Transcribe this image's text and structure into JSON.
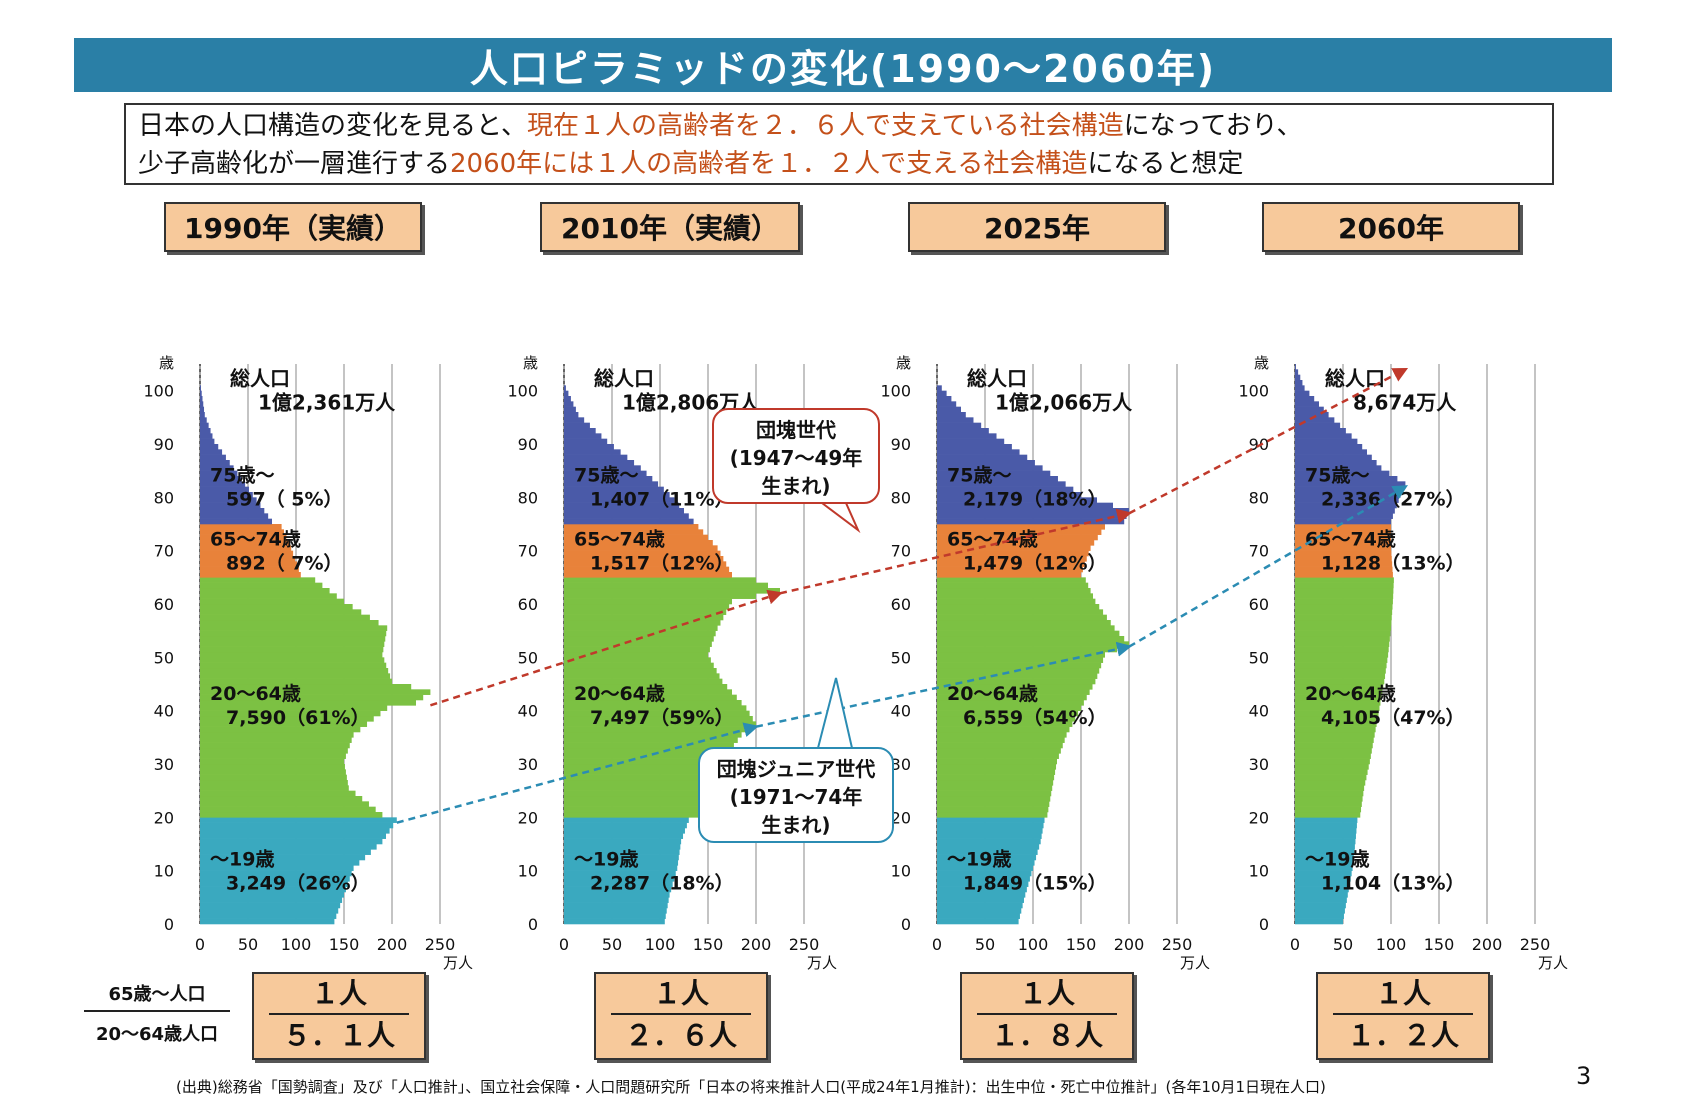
{
  "title": "人口ピラミッドの変化(1990～2060年)",
  "summary": {
    "line1_a": "日本の人口構造の変化を見ると、",
    "line1_b": "現在１人の高齢者を２．６人で支えている社会構造",
    "line1_c": "になっており、",
    "line2_a": "少子高齢化が一層進行する",
    "line2_b": "2060年には１人の高齢者を１．２人で支える社会構造",
    "line2_c": "になると想定"
  },
  "ratio_label": {
    "top": "65歳～人口",
    "bottom": "20～64歳人口"
  },
  "callouts": {
    "dankai": [
      "団塊世代",
      "(1947～49年",
      "生まれ)"
    ],
    "junior": [
      "団塊ジュニア世代",
      "(1971～74年",
      "生まれ)"
    ]
  },
  "source": "(出典)総務省「国勢調査」及び「人口推計」、国立社会保障・人口問題研究所「日本の将来推計人口(平成24年1月推計)：出生中位・死亡中位推計」(各年10月1日現在人口)",
  "page_number": "3",
  "colors": {
    "title_bar": "#2a7fa6",
    "age_75_plus": "#4a5aa8",
    "age_65_74": "#e8823a",
    "age_20_64": "#7cc143",
    "age_0_19": "#3aa9bf",
    "dankai_arrow": "#c0392b",
    "junior_arrow": "#2b8cb3",
    "highlight_text": "#c4501a"
  },
  "chart_data": [
    {
      "type": "bar",
      "year_label": "1990年（実績）",
      "total_label": "総人口",
      "total_value": "1億2,361万人",
      "ratio": {
        "numerator": "１人",
        "denominator": "５．１人"
      },
      "y_axis_unit": "歳",
      "x_axis_unit": "万人",
      "x_ticks": [
        "0",
        "50",
        "100",
        "150",
        "200",
        "250"
      ],
      "y_ticks": [
        "0",
        "10",
        "20",
        "30",
        "40",
        "50",
        "60",
        "70",
        "80",
        "90",
        "100"
      ],
      "xlim": [
        0,
        250
      ],
      "ylim": [
        0,
        105
      ],
      "groups": [
        {
          "label": "75歳～",
          "value": "597（ 5%）",
          "age_range": [
            75,
            100
          ]
        },
        {
          "label": "65～74歳",
          "value": "892（ 7%）",
          "age_range": [
            65,
            74
          ]
        },
        {
          "label": "20～64歳",
          "value": "7,590（61%）",
          "age_range": [
            20,
            64
          ]
        },
        {
          "label": "～19歳",
          "value": "3,249（26%）",
          "age_range": [
            0,
            19
          ]
        }
      ],
      "age_profile": [
        [
          0,
          140
        ],
        [
          5,
          150
        ],
        [
          10,
          160
        ],
        [
          15,
          190
        ],
        [
          19,
          205
        ],
        [
          20,
          190
        ],
        [
          25,
          155
        ],
        [
          30,
          150
        ],
        [
          35,
          160
        ],
        [
          40,
          195
        ],
        [
          41,
          225
        ],
        [
          43,
          240
        ],
        [
          45,
          200
        ],
        [
          50,
          190
        ],
        [
          55,
          195
        ],
        [
          60,
          150
        ],
        [
          64,
          120
        ],
        [
          65,
          105
        ],
        [
          70,
          95
        ],
        [
          74,
          85
        ],
        [
          75,
          75
        ],
        [
          80,
          55
        ],
        [
          85,
          35
        ],
        [
          90,
          15
        ],
        [
          95,
          5
        ],
        [
          100,
          1
        ]
      ]
    },
    {
      "type": "bar",
      "year_label": "2010年（実績）",
      "total_label": "総人口",
      "total_value": "1億2,806万人",
      "ratio": {
        "numerator": "１人",
        "denominator": "２．６人"
      },
      "y_axis_unit": "歳",
      "x_axis_unit": "万人",
      "x_ticks": [
        "0",
        "50",
        "100",
        "150",
        "200",
        "250"
      ],
      "y_ticks": [
        "0",
        "10",
        "20",
        "30",
        "40",
        "50",
        "60",
        "70",
        "80",
        "90",
        "100"
      ],
      "xlim": [
        0,
        250
      ],
      "ylim": [
        0,
        105
      ],
      "groups": [
        {
          "label": "75歳～",
          "value": "1,407（11%）",
          "age_range": [
            75,
            100
          ]
        },
        {
          "label": "65～74歳",
          "value": "1,517（12%）",
          "age_range": [
            65,
            74
          ]
        },
        {
          "label": "20～64歳",
          "value": "7,497（59%）",
          "age_range": [
            20,
            64
          ]
        },
        {
          "label": "～19歳",
          "value": "2,287（18%）",
          "age_range": [
            0,
            19
          ]
        }
      ],
      "age_profile": [
        [
          0,
          105
        ],
        [
          5,
          110
        ],
        [
          10,
          118
        ],
        [
          15,
          122
        ],
        [
          19,
          130
        ],
        [
          20,
          140
        ],
        [
          25,
          150
        ],
        [
          30,
          165
        ],
        [
          35,
          185
        ],
        [
          37,
          200
        ],
        [
          40,
          190
        ],
        [
          45,
          165
        ],
        [
          50,
          150
        ],
        [
          55,
          160
        ],
        [
          60,
          175
        ],
        [
          62,
          225
        ],
        [
          64,
          200
        ],
        [
          65,
          175
        ],
        [
          70,
          160
        ],
        [
          74,
          140
        ],
        [
          75,
          135
        ],
        [
          80,
          110
        ],
        [
          85,
          80
        ],
        [
          90,
          45
        ],
        [
          95,
          15
        ],
        [
          100,
          2
        ]
      ]
    },
    {
      "type": "bar",
      "year_label": "2025年",
      "total_label": "総人口",
      "total_value": "1億2,066万人",
      "ratio": {
        "numerator": "１人",
        "denominator": "１．８人"
      },
      "y_axis_unit": "歳",
      "x_axis_unit": "万人",
      "x_ticks": [
        "0",
        "50",
        "100",
        "150",
        "200",
        "250"
      ],
      "y_ticks": [
        "0",
        "10",
        "20",
        "30",
        "40",
        "50",
        "60",
        "70",
        "80",
        "90",
        "100"
      ],
      "xlim": [
        0,
        250
      ],
      "ylim": [
        0,
        105
      ],
      "groups": [
        {
          "label": "75歳～",
          "value": "2,179（18%）",
          "age_range": [
            75,
            100
          ]
        },
        {
          "label": "65～74歳",
          "value": "1,479（12%）",
          "age_range": [
            65,
            74
          ]
        },
        {
          "label": "20～64歳",
          "value": "6,559（54%）",
          "age_range": [
            20,
            64
          ]
        },
        {
          "label": "～19歳",
          "value": "1,849（15%）",
          "age_range": [
            0,
            19
          ]
        }
      ],
      "age_profile": [
        [
          0,
          85
        ],
        [
          5,
          92
        ],
        [
          10,
          100
        ],
        [
          15,
          108
        ],
        [
          19,
          112
        ],
        [
          20,
          115
        ],
        [
          25,
          120
        ],
        [
          30,
          125
        ],
        [
          35,
          135
        ],
        [
          40,
          150
        ],
        [
          45,
          165
        ],
        [
          50,
          175
        ],
        [
          52,
          200
        ],
        [
          55,
          185
        ],
        [
          60,
          165
        ],
        [
          64,
          155
        ],
        [
          65,
          150
        ],
        [
          70,
          160
        ],
        [
          74,
          175
        ],
        [
          75,
          195
        ],
        [
          77,
          200
        ],
        [
          80,
          150
        ],
        [
          85,
          110
        ],
        [
          90,
          70
        ],
        [
          95,
          30
        ],
        [
          100,
          5
        ]
      ]
    },
    {
      "type": "bar",
      "year_label": "2060年",
      "total_label": "総人口",
      "total_value": "8,674万人",
      "ratio": {
        "numerator": "１人",
        "denominator": "１．２人"
      },
      "y_axis_unit": "歳",
      "x_axis_unit": "万人",
      "x_ticks": [
        "0",
        "50",
        "100",
        "150",
        "200",
        "250"
      ],
      "y_ticks": [
        "0",
        "10",
        "20",
        "30",
        "40",
        "50",
        "60",
        "70",
        "80",
        "90",
        "100"
      ],
      "xlim": [
        0,
        250
      ],
      "ylim": [
        0,
        105
      ],
      "groups": [
        {
          "label": "75歳～",
          "value": "2,336（27%）",
          "age_range": [
            75,
            100
          ]
        },
        {
          "label": "65～74歳",
          "value": "1,128（13%）",
          "age_range": [
            65,
            74
          ]
        },
        {
          "label": "20～64歳",
          "value": "4,105（47%）",
          "age_range": [
            20,
            64
          ]
        },
        {
          "label": "～19歳",
          "value": "1,104（13%）",
          "age_range": [
            0,
            19
          ]
        }
      ],
      "age_profile": [
        [
          0,
          50
        ],
        [
          5,
          55
        ],
        [
          10,
          60
        ],
        [
          15,
          63
        ],
        [
          19,
          65
        ],
        [
          20,
          68
        ],
        [
          25,
          72
        ],
        [
          30,
          78
        ],
        [
          35,
          83
        ],
        [
          40,
          88
        ],
        [
          45,
          93
        ],
        [
          50,
          97
        ],
        [
          55,
          100
        ],
        [
          60,
          102
        ],
        [
          64,
          103
        ],
        [
          65,
          102
        ],
        [
          70,
          100
        ],
        [
          74,
          100
        ],
        [
          75,
          100
        ],
        [
          80,
          110
        ],
        [
          82,
          115
        ],
        [
          85,
          90
        ],
        [
          90,
          65
        ],
        [
          95,
          35
        ],
        [
          100,
          10
        ],
        [
          104,
          1
        ]
      ]
    }
  ]
}
